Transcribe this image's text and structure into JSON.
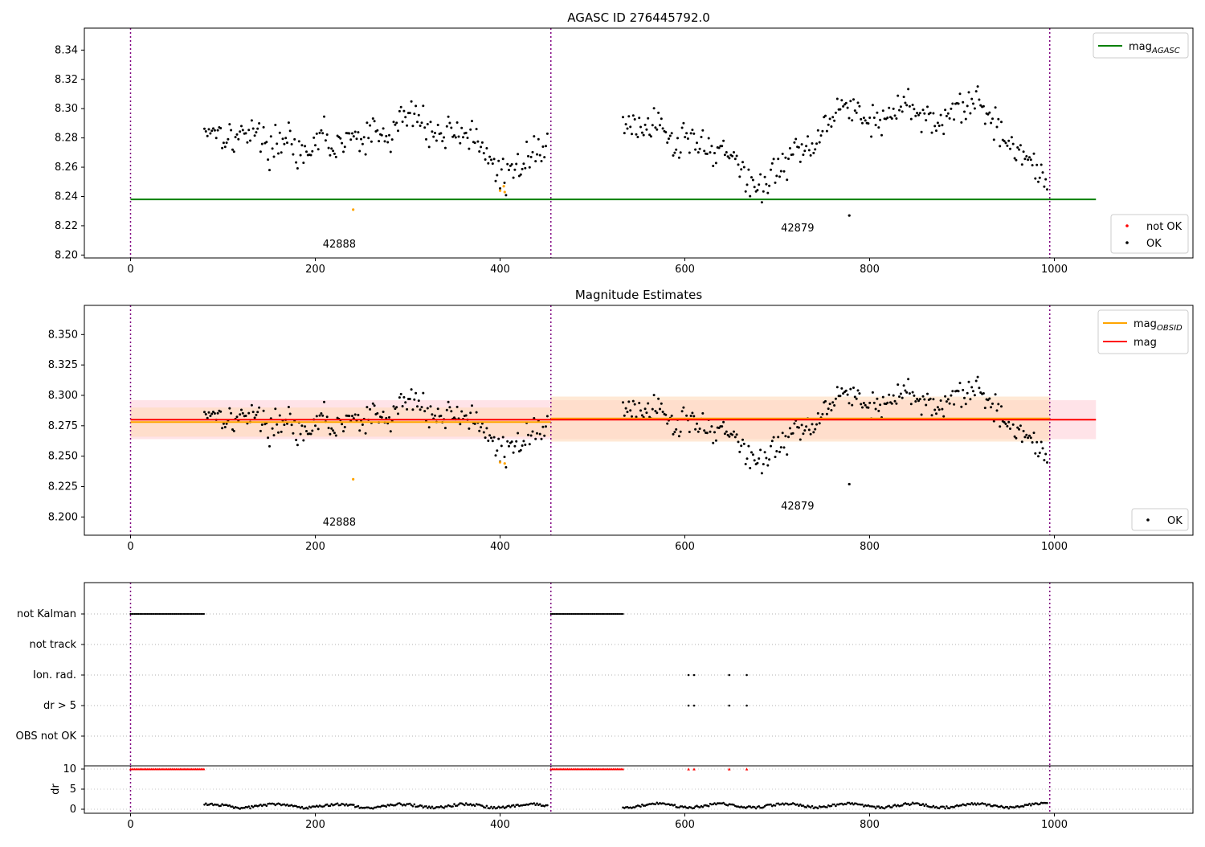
{
  "figure": {
    "top_title": "AGASC ID 276445792.0",
    "mid_title": "Magnitude Estimates",
    "colors": {
      "ok": "#000000",
      "not_ok": "#ff0000",
      "obs_points": "#ffa500",
      "agasc_line": "#008000",
      "obsid_line": "#ffa500",
      "mag_line": "#ff0000",
      "boundary": "#800080",
      "band_mag": "#ffc0cb",
      "band_obs": "#ffdab9"
    }
  },
  "chart_data": [
    {
      "type": "scatter",
      "title": "AGASC ID 276445792.0",
      "xlim": [
        -50,
        1150
      ],
      "ylim": [
        8.198,
        8.355
      ],
      "xticks": [
        0,
        200,
        400,
        600,
        800,
        1000
      ],
      "yticks": [
        8.2,
        8.22,
        8.24,
        8.26,
        8.28,
        8.3,
        8.32,
        8.34
      ],
      "ytick_labels": [
        "8.20",
        "8.22",
        "8.24",
        "8.26",
        "8.28",
        "8.30",
        "8.32",
        "8.34"
      ],
      "obsid_boundaries": [
        0,
        455,
        995
      ],
      "obsid_labels": [
        {
          "text": "42888",
          "x": 226,
          "y": 8.205
        },
        {
          "text": "42879",
          "x": 722,
          "y": 8.216
        }
      ],
      "lines": [
        {
          "name": "mag$_{AGASC}$",
          "y": 8.238,
          "x": [
            0,
            1045
          ],
          "color": "#008000"
        }
      ],
      "legend_top": {
        "position": "upper right",
        "entries": [
          {
            "main": "mag",
            "sub": "AGASC",
            "color": "#008000"
          }
        ]
      },
      "legend_bottom": {
        "position": "lower right",
        "entries": [
          {
            "label": "not OK",
            "color": "#ff0000"
          },
          {
            "label": "OK",
            "color": "#000000"
          }
        ]
      },
      "orange_points": [
        {
          "x": 241,
          "y": 8.231
        },
        {
          "x": 400,
          "y": 8.244
        },
        {
          "x": 405,
          "y": 8.243
        },
        {
          "x": 404,
          "y": 8.247
        }
      ],
      "outlier_points": [
        {
          "x": 778,
          "y": 8.227
        }
      ],
      "series": [
        {
          "name": "OK",
          "x_start": 80,
          "x_end": 452,
          "step": 1.6,
          "anchors": [
            [
              80,
              8.286
            ],
            [
              90,
              8.287
            ],
            [
              100,
              8.283
            ],
            [
              110,
              8.28
            ],
            [
              120,
              8.28
            ],
            [
              130,
              8.289
            ],
            [
              140,
              8.28
            ],
            [
              150,
              8.273
            ],
            [
              160,
              8.276
            ],
            [
              170,
              8.285
            ],
            [
              180,
              8.27
            ],
            [
              190,
              8.262
            ],
            [
              200,
              8.276
            ],
            [
              210,
              8.285
            ],
            [
              220,
              8.27
            ],
            [
              230,
              8.276
            ],
            [
              240,
              8.283
            ],
            [
              250,
              8.275
            ],
            [
              260,
              8.284
            ],
            [
              270,
              8.282
            ],
            [
              280,
              8.278
            ],
            [
              290,
              8.293
            ],
            [
              300,
              8.295
            ],
            [
              310,
              8.295
            ],
            [
              320,
              8.291
            ],
            [
              330,
              8.28
            ],
            [
              340,
              8.283
            ],
            [
              350,
              8.288
            ],
            [
              360,
              8.283
            ],
            [
              370,
              8.282
            ],
            [
              380,
              8.268
            ],
            [
              390,
              8.264
            ],
            [
              400,
              8.256
            ],
            [
              410,
              8.252
            ],
            [
              420,
              8.26
            ],
            [
              430,
              8.272
            ],
            [
              440,
              8.268
            ],
            [
              450,
              8.278
            ],
            [
              452,
              8.282
            ]
          ],
          "noise": 0.0055
        },
        {
          "name": "OK",
          "x_start": 533,
          "x_end": 993,
          "step": 1.6,
          "anchors": [
            [
              533,
              8.29
            ],
            [
              545,
              8.288
            ],
            [
              555,
              8.282
            ],
            [
              565,
              8.29
            ],
            [
              580,
              8.282
            ],
            [
              590,
              8.274
            ],
            [
              600,
              8.282
            ],
            [
              610,
              8.282
            ],
            [
              620,
              8.275
            ],
            [
              630,
              8.27
            ],
            [
              640,
              8.275
            ],
            [
              650,
              8.264
            ],
            [
              660,
              8.26
            ],
            [
              670,
              8.25
            ],
            [
              680,
              8.245
            ],
            [
              690,
              8.25
            ],
            [
              700,
              8.258
            ],
            [
              710,
              8.262
            ],
            [
              720,
              8.275
            ],
            [
              730,
              8.27
            ],
            [
              740,
              8.278
            ],
            [
              750,
              8.29
            ],
            [
              760,
              8.298
            ],
            [
              770,
              8.302
            ],
            [
              780,
              8.3
            ],
            [
              790,
              8.298
            ],
            [
              800,
              8.29
            ],
            [
              810,
              8.292
            ],
            [
              820,
              8.296
            ],
            [
              830,
              8.298
            ],
            [
              840,
              8.303
            ],
            [
              850,
              8.3
            ],
            [
              860,
              8.296
            ],
            [
              870,
              8.292
            ],
            [
              880,
              8.285
            ],
            [
              890,
              8.298
            ],
            [
              900,
              8.3
            ],
            [
              910,
              8.305
            ],
            [
              920,
              8.308
            ],
            [
              930,
              8.292
            ],
            [
              940,
              8.288
            ],
            [
              950,
              8.28
            ],
            [
              960,
              8.27
            ],
            [
              970,
              8.265
            ],
            [
              980,
              8.262
            ],
            [
              990,
              8.256
            ],
            [
              993,
              8.25
            ]
          ],
          "noise": 0.0055
        }
      ]
    },
    {
      "type": "scatter",
      "title": "Magnitude Estimates",
      "xlim": [
        -50,
        1150
      ],
      "ylim": [
        8.185,
        8.374
      ],
      "xticks": [
        0,
        200,
        400,
        600,
        800,
        1000
      ],
      "yticks": [
        8.2,
        8.225,
        8.25,
        8.275,
        8.3,
        8.325,
        8.35
      ],
      "ytick_labels": [
        "8.200",
        "8.225",
        "8.250",
        "8.275",
        "8.300",
        "8.325",
        "8.350"
      ],
      "obsid_boundaries": [
        0,
        455,
        995
      ],
      "obsid_labels": [
        {
          "text": "42888",
          "x": 226,
          "y": 8.193
        },
        {
          "text": "42879",
          "x": 722,
          "y": 8.206
        }
      ],
      "lines": [
        {
          "name": "mag$_{OBSID}$",
          "y": 8.278,
          "x": [
            0,
            455
          ],
          "color": "#ffa500"
        },
        {
          "name": "mag$_{OBSID}$",
          "y": 8.281,
          "x": [
            455,
            995
          ],
          "color": "#ffa500"
        },
        {
          "name": "mag",
          "y": 8.28,
          "x": [
            0,
            1045
          ],
          "color": "#ff0000"
        }
      ],
      "bands": [
        {
          "name": "mag",
          "x": [
            0,
            1045
          ],
          "y": [
            8.264,
            8.296
          ],
          "color": "#ffc0cb"
        },
        {
          "name": "mag$_{OBSID}$",
          "x": [
            0,
            455
          ],
          "y": [
            8.266,
            8.29
          ],
          "color": "#ffdab9"
        },
        {
          "name": "mag$_{OBSID}$",
          "x": [
            455,
            995
          ],
          "y": [
            8.262,
            8.299
          ],
          "color": "#ffdab9"
        }
      ],
      "legend_top": {
        "position": "upper right",
        "entries": [
          {
            "main": "mag",
            "sub": "OBSID",
            "color": "#ffa500"
          },
          {
            "main": "mag",
            "sub": "",
            "color": "#ff0000"
          }
        ]
      },
      "legend_bottom": {
        "position": "lower right",
        "entries": [
          {
            "label": "OK",
            "color": "#000000"
          }
        ]
      },
      "orange_points": [
        {
          "x": 241,
          "y": 8.231
        },
        {
          "x": 400,
          "y": 8.245
        },
        {
          "x": 405,
          "y": 8.244
        }
      ],
      "outlier_points": [
        {
          "x": 778,
          "y": 8.227
        }
      ]
    },
    {
      "type": "scatter",
      "xlim": [
        -50,
        1150
      ],
      "xticks": [
        0,
        200,
        400,
        600,
        800,
        1000
      ],
      "flag_rows": [
        "not Kalman",
        "not track",
        "Ion. rad.",
        "dr > 5",
        "OBS not OK"
      ],
      "obsid_boundaries": [
        0,
        455,
        995
      ],
      "flags": {
        "not Kalman": [
          [
            0,
            80
          ],
          [
            455,
            533
          ]
        ],
        "Ion. rad.": [
          604,
          610,
          648,
          667
        ],
        "dr > 5": [
          604,
          610,
          648,
          667
        ]
      },
      "dr": {
        "ylabel": "dr",
        "yticks": [
          0,
          5,
          10
        ],
        "ylim": [
          -1,
          10.8
        ],
        "clipped_value": 10,
        "clipped_ranges": [
          [
            0,
            80
          ],
          [
            455,
            533
          ]
        ],
        "clipped_points": [
          604,
          610,
          648,
          667
        ],
        "segments": [
          {
            "x_start": 80,
            "x_end": 452,
            "mean": 0.8
          },
          {
            "x_start": 533,
            "x_end": 993,
            "mean": 0.9
          }
        ]
      }
    }
  ]
}
